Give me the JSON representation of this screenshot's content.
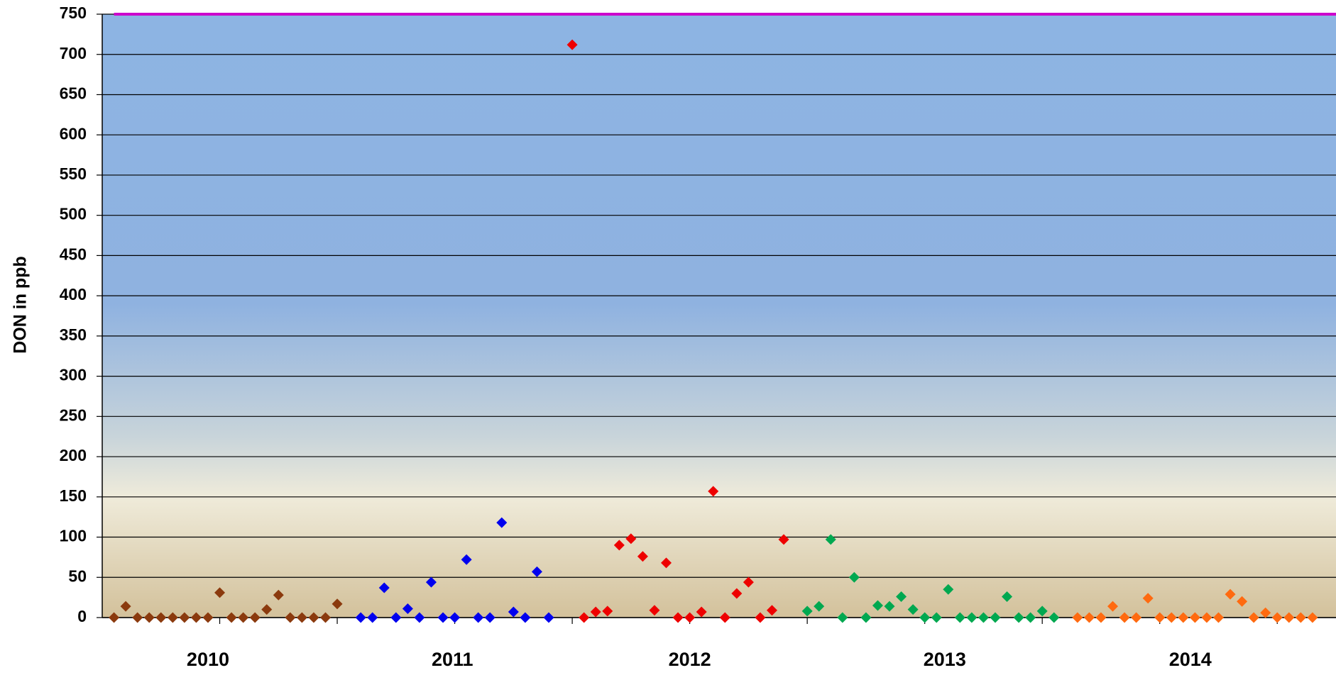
{
  "chart_data": {
    "type": "scatter",
    "y_label": "DON in ppb",
    "ylim": [
      0,
      750
    ],
    "yticks": [
      0,
      50,
      100,
      150,
      200,
      250,
      300,
      350,
      400,
      450,
      500,
      550,
      600,
      650,
      700,
      750
    ],
    "xlim": [
      -1,
      104
    ],
    "xticks": [
      {
        "value": 8,
        "label": "2010"
      },
      {
        "value": 28.8,
        "label": "2011"
      },
      {
        "value": 49,
        "label": "2012"
      },
      {
        "value": 70.7,
        "label": "2013"
      },
      {
        "value": 91.6,
        "label": "2014"
      }
    ],
    "grid": true,
    "limit": {
      "value": 750,
      "color": "#cc00cc"
    },
    "series": [
      {
        "color": "#8b3a0e",
        "x": [
          0,
          1,
          2,
          3,
          4,
          5,
          6,
          7,
          8,
          9,
          10,
          11,
          12,
          13,
          14,
          15,
          16,
          17,
          18,
          19
        ],
        "values": [
          0,
          14,
          0,
          0,
          0,
          0,
          0,
          0,
          0,
          31,
          0,
          0,
          0,
          10,
          28,
          0,
          0,
          0,
          0,
          17
        ]
      },
      {
        "color": "#0000ee",
        "x": [
          21,
          22,
          23,
          24,
          25,
          26,
          27,
          28,
          29,
          30,
          31,
          32,
          33,
          34,
          35,
          36,
          37
        ],
        "values": [
          0,
          0,
          37,
          0,
          11,
          0,
          44,
          0,
          0,
          72,
          0,
          0,
          118,
          7,
          0,
          57,
          0
        ]
      },
      {
        "color": "#ee0000",
        "x": [
          39,
          40,
          41,
          42,
          43,
          44,
          45,
          46,
          47,
          48,
          49,
          50,
          51,
          52,
          53,
          54,
          55,
          56,
          57
        ],
        "values": [
          712,
          0,
          7,
          8,
          90,
          98,
          76,
          9,
          68,
          0,
          0,
          7,
          157,
          0,
          30,
          44,
          0,
          9,
          97
        ]
      },
      {
        "color": "#00a850",
        "x": [
          59,
          60,
          61,
          62,
          63,
          64,
          65,
          66,
          67,
          68,
          69,
          70,
          71,
          72,
          73,
          74,
          75,
          76,
          77,
          78,
          79,
          80
        ],
        "values": [
          8,
          14,
          97,
          0,
          50,
          0,
          15,
          14,
          26,
          10,
          0,
          0,
          35,
          0,
          0,
          0,
          0,
          26,
          0,
          0,
          8,
          0
        ]
      },
      {
        "color": "#ff6a10",
        "x": [
          82,
          83,
          84,
          85,
          86,
          87,
          88,
          89,
          90,
          91,
          92,
          93,
          94,
          95,
          96,
          97,
          98,
          99,
          100,
          101,
          102
        ],
        "values": [
          0,
          0,
          0,
          14,
          0,
          0,
          24,
          0,
          0,
          0,
          0,
          0,
          0,
          29,
          20,
          0,
          6,
          0,
          0,
          0,
          0
        ]
      }
    ]
  }
}
